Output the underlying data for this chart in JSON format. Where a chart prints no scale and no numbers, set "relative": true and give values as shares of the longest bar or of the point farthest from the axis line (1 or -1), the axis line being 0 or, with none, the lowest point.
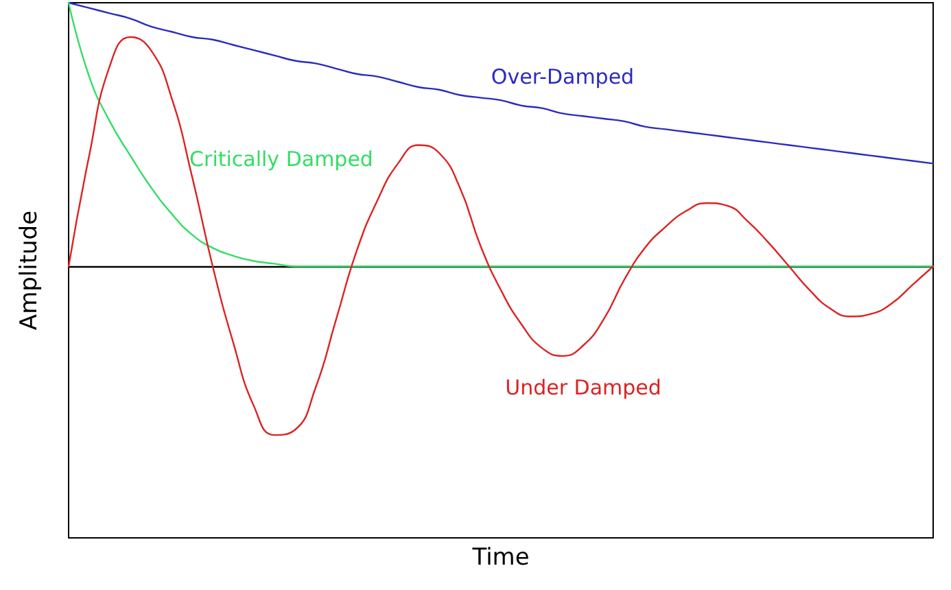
{
  "chart_data": {
    "type": "line",
    "relative": true,
    "xlabel": "Time",
    "ylabel": "Amplitude",
    "marker": "none",
    "ref_lines": [
      {
        "axis": "y",
        "value": 0,
        "color": "#000000"
      }
    ],
    "categories": [
      null,
      null,
      null,
      null,
      null,
      null,
      null,
      null,
      null,
      null,
      null,
      null,
      null,
      null,
      null,
      null,
      null,
      null,
      null,
      null,
      null,
      null,
      null,
      null,
      null,
      null,
      null,
      null,
      null,
      null,
      null,
      null,
      null,
      null,
      null,
      null,
      null,
      null,
      null,
      null,
      null,
      null,
      null
    ],
    "series": [
      {
        "name": "Over-Damped",
        "color": "#2b2bc0",
        "values": [
          1,
          0.98,
          0.96,
          0.94,
          0.91,
          0.89,
          0.87,
          0.86,
          0.84,
          0.82,
          0.8,
          0.78,
          0.77,
          0.75,
          0.73,
          0.72,
          0.7,
          0.68,
          0.67,
          0.65,
          0.64,
          0.63,
          0.61,
          0.6,
          0.58,
          0.57,
          0.56,
          0.55,
          0.53,
          0.52,
          0.51,
          0.5,
          0.49,
          0.48,
          0.47,
          0.46,
          0.45,
          0.44,
          0.43,
          0.42,
          0.41,
          0.4,
          0.39
        ]
      },
      {
        "name": "Critically Damped",
        "color": "#33dd66",
        "values": [
          1,
          0.72,
          0.55,
          0.42,
          0.3,
          0.2,
          0.12,
          0.07,
          0.04,
          0.02,
          0.01,
          0,
          0,
          0,
          0,
          0,
          0,
          0,
          0,
          0,
          0,
          0,
          0,
          0,
          0,
          0,
          0,
          0,
          0,
          0,
          0,
          0,
          0,
          0,
          0,
          0,
          0,
          0,
          0,
          0,
          0,
          0,
          0
        ]
      },
      {
        "name": "Under Damped",
        "color": "#dd2222",
        "values": [
          0,
          0.42,
          0.76,
          0.87,
          0.82,
          0.64,
          0.34,
          0,
          -0.29,
          -0.53,
          -0.64,
          -0.62,
          -0.46,
          -0.2,
          0.06,
          0.25,
          0.39,
          0.46,
          0.43,
          0.3,
          0.08,
          -0.09,
          -0.22,
          -0.31,
          -0.34,
          -0.3,
          -0.2,
          -0.05,
          0.07,
          0.15,
          0.21,
          0.24,
          0.23,
          0.17,
          0.09,
          0,
          -0.09,
          -0.16,
          -0.19,
          -0.18,
          -0.14,
          -0.07,
          0
        ]
      }
    ]
  }
}
